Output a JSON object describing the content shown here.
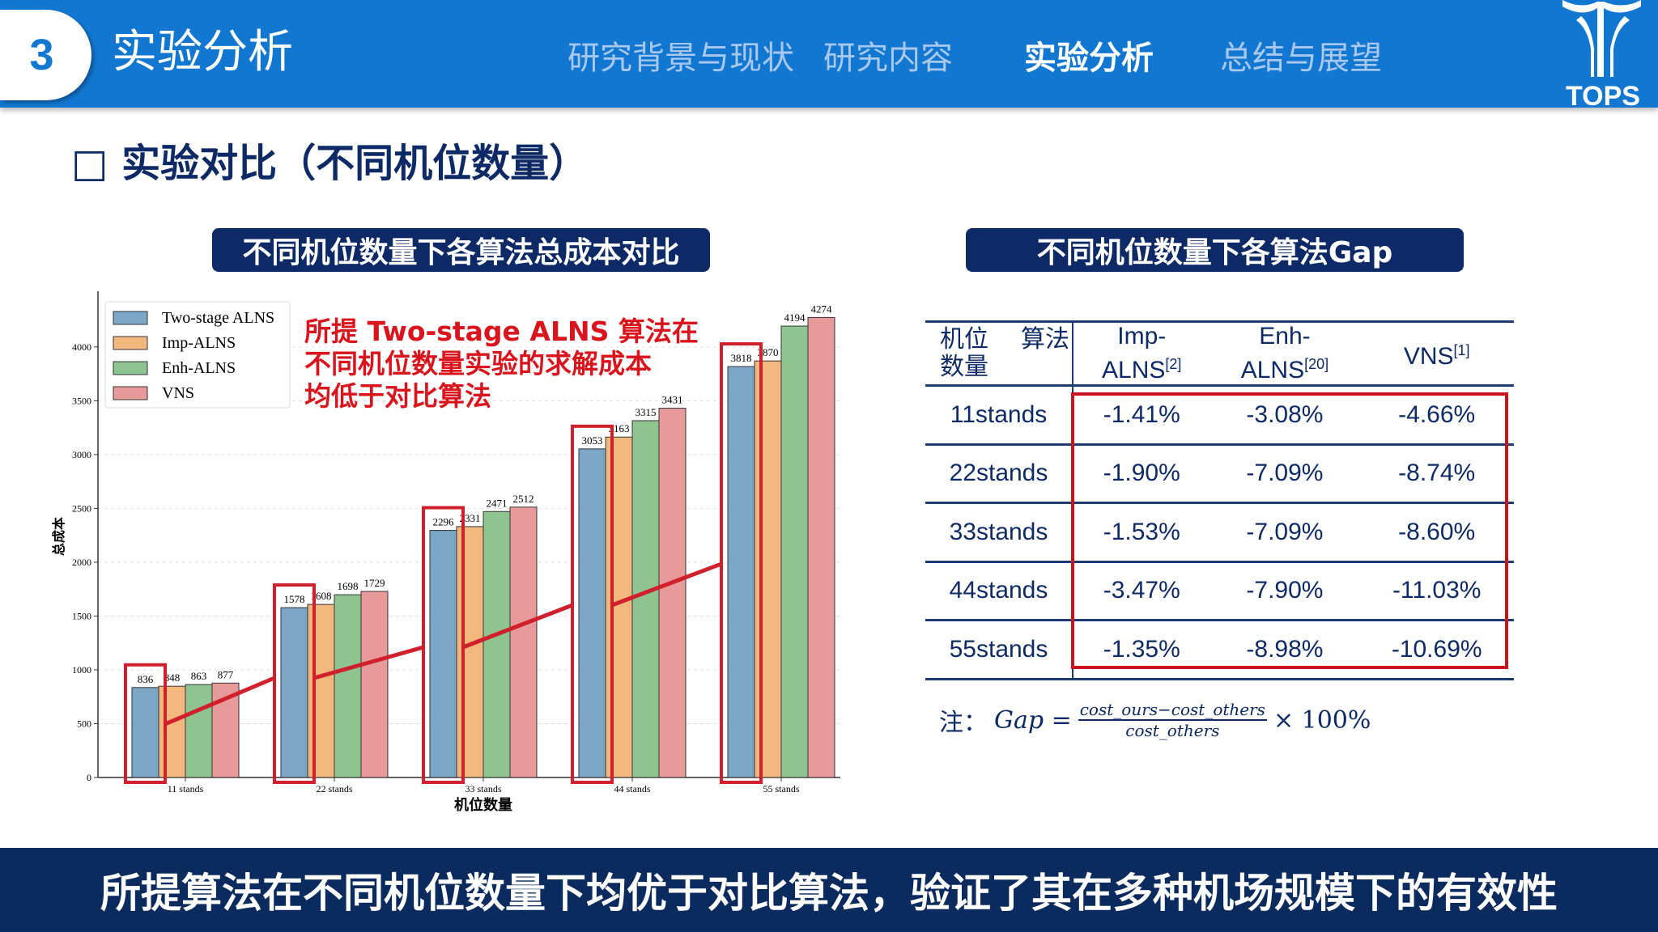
{
  "header": {
    "section_number": "3",
    "title": "实验分析",
    "nav": [
      {
        "label": "研究背景与现状",
        "active": false
      },
      {
        "label": "研究内容",
        "active": false
      },
      {
        "label": "实验分析",
        "active": true
      },
      {
        "label": "总结与展望",
        "active": false
      }
    ],
    "logo_text": "TOPS"
  },
  "section_title": "□ 实验对比（不同机位数量）",
  "left_panel_title": "不同机位数量下各算法总成本对比",
  "right_panel_title": "不同机位数量下各算法Gap",
  "annotation": [
    "所提 Two-stage ALNS 算法在",
    "不同机位数量实验的求解成本",
    "均低于对比算法"
  ],
  "chart_data": {
    "type": "bar",
    "categories": [
      "11 stands",
      "22 stands",
      "33 stands",
      "44 stands",
      "55 stands"
    ],
    "series": [
      {
        "name": "Two-stage ALNS",
        "color": "#7ba6c4",
        "values": [
          836,
          1578,
          2296,
          3053,
          3818
        ]
      },
      {
        "name": "Imp-ALNS",
        "color": "#f2b77c",
        "values": [
          848,
          1608,
          2331,
          3163,
          3870
        ]
      },
      {
        "name": "Enh-ALNS",
        "color": "#8fc490",
        "values": [
          863,
          1698,
          2471,
          3315,
          4194
        ]
      },
      {
        "name": "VNS",
        "color": "#e89a9a",
        "values": [
          877,
          1729,
          2512,
          3431,
          4274
        ]
      }
    ],
    "xlabel": "机位数量",
    "ylabel": "总成本",
    "ylim": [
      0,
      4480
    ],
    "yticks": [
      0,
      500,
      1000,
      1500,
      2000,
      2500,
      3000,
      3500,
      4000
    ],
    "grid": true,
    "legend": "top-left",
    "highlight_color": "#d0202c"
  },
  "table": {
    "header_stub_top": "算法",
    "header_stub_left": "机位",
    "header_stub_bottom": "数量",
    "columns": [
      {
        "name": "Imp-",
        "name2": "ALNS",
        "ref": "[2]"
      },
      {
        "name": "Enh-",
        "name2": "ALNS",
        "ref": "[20]"
      },
      {
        "name": "",
        "name2": "VNS",
        "ref": "[1]"
      }
    ],
    "rows": [
      {
        "label": "11stands",
        "values": [
          "-1.41%",
          "-3.08%",
          "-4.66%"
        ]
      },
      {
        "label": "22stands",
        "values": [
          "-1.90%",
          "-7.09%",
          "-8.74%"
        ]
      },
      {
        "label": "33stands",
        "values": [
          "-1.53%",
          "-7.09%",
          "-8.60%"
        ]
      },
      {
        "label": "44stands",
        "values": [
          "-3.47%",
          "-7.90%",
          "-11.03%"
        ]
      },
      {
        "label": "55stands",
        "values": [
          "-1.35%",
          "-8.98%",
          "-10.69%"
        ]
      }
    ]
  },
  "formula": {
    "prefix": "注：",
    "lhs": "Gap =",
    "numerator": "cost_ours−cost_others",
    "denominator": "cost_others",
    "suffix": "× 100%"
  },
  "footer": "所提算法在不同机位数量下均优于对比算法，验证了其在多种机场规模下的有效性"
}
